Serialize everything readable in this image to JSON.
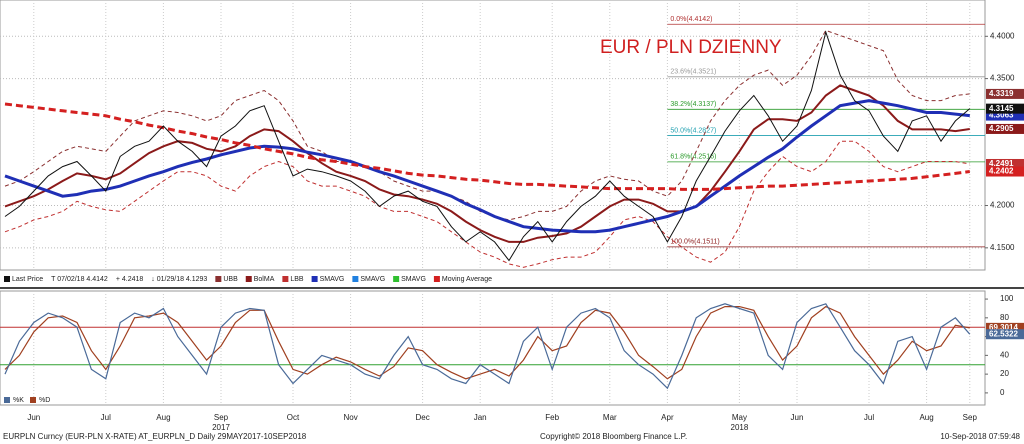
{
  "chart_data": [
    {
      "type": "line",
      "title": "EUR / PLN DZIENNY",
      "categories": [
        null,
        null,
        "Jun",
        null,
        null,
        null,
        null,
        "Jul",
        null,
        null,
        null,
        "Aug",
        null,
        null,
        null,
        "Sep",
        null,
        null,
        null,
        null,
        "Oct",
        null,
        null,
        null,
        "Nov",
        null,
        null,
        null,
        null,
        "Dec",
        null,
        null,
        null,
        "Jan",
        null,
        null,
        null,
        null,
        "Feb",
        null,
        null,
        null,
        "Mar",
        null,
        null,
        null,
        "Apr",
        null,
        null,
        null,
        null,
        "May",
        null,
        null,
        null,
        "Jun",
        null,
        null,
        null,
        null,
        "Jul",
        null,
        null,
        null,
        "Aug",
        null,
        null,
        "Sep"
      ],
      "x_year_labels": [
        "2017",
        "2018"
      ],
      "ylim": [
        4.1238,
        4.4429
      ],
      "yticks": [
        {
          "value": 4.15,
          "label": "4.1500"
        },
        {
          "value": 4.2,
          "label": "4.2000"
        },
        {
          "value": 4.35,
          "label": "4.3500"
        },
        {
          "value": 4.4,
          "label": "4.4000"
        }
      ],
      "grid": true,
      "series": [
        {
          "color": "#8b3030",
          "dash": true,
          "width": 1,
          "values": [
            4.223,
            4.229,
            4.24,
            4.252,
            4.264,
            4.27,
            4.267,
            4.264,
            4.282,
            4.3,
            4.306,
            4.312,
            4.31,
            4.306,
            4.3,
            4.306,
            4.324,
            4.33,
            4.336,
            4.324,
            4.3,
            4.27,
            4.264,
            4.252,
            4.252,
            4.246,
            4.24,
            4.229,
            4.223,
            4.217,
            4.217,
            4.211,
            4.205,
            4.193,
            4.187,
            4.183,
            4.187,
            4.193,
            4.193,
            4.199,
            4.217,
            4.229,
            4.235,
            4.231,
            4.229,
            4.217,
            4.211,
            4.229,
            4.264,
            4.3,
            4.324,
            4.342,
            4.354,
            4.36,
            4.342,
            4.354,
            4.377,
            4.407,
            4.401,
            4.395,
            4.389,
            4.383,
            4.348,
            4.33,
            4.324,
            4.324,
            4.33,
            4.3319
          ]
        },
        {
          "color": "#8b1a1a",
          "dash": false,
          "width": 2,
          "values": [
            4.199,
            4.205,
            4.211,
            4.219,
            4.229,
            4.238,
            4.235,
            4.231,
            4.238,
            4.25,
            4.262,
            4.27,
            4.276,
            4.274,
            4.267,
            4.264,
            4.27,
            4.282,
            4.29,
            4.288,
            4.276,
            4.262,
            4.25,
            4.24,
            4.235,
            4.229,
            4.219,
            4.213,
            4.211,
            4.207,
            4.202,
            4.193,
            4.181,
            4.171,
            4.163,
            4.157,
            4.157,
            4.162,
            4.164,
            4.167,
            4.175,
            4.187,
            4.199,
            4.207,
            4.207,
            4.202,
            4.193,
            4.193,
            4.199,
            4.217,
            4.24,
            4.264,
            4.29,
            4.302,
            4.302,
            4.3,
            4.31,
            4.33,
            4.342,
            4.336,
            4.33,
            4.318,
            4.3,
            4.29,
            4.29,
            4.29,
            4.288,
            4.2905
          ]
        },
        {
          "color": "#c03030",
          "dash": true,
          "width": 1,
          "values": [
            4.169,
            4.175,
            4.183,
            4.187,
            4.193,
            4.205,
            4.199,
            4.195,
            4.193,
            4.205,
            4.217,
            4.229,
            4.24,
            4.24,
            4.235,
            4.223,
            4.217,
            4.235,
            4.246,
            4.252,
            4.246,
            4.229,
            4.223,
            4.223,
            4.217,
            4.211,
            4.199,
            4.193,
            4.193,
            4.187,
            4.181,
            4.169,
            4.157,
            4.145,
            4.139,
            4.131,
            4.127,
            4.131,
            4.136,
            4.139,
            4.139,
            4.145,
            4.163,
            4.183,
            4.187,
            4.181,
            4.163,
            4.151,
            4.139,
            4.133,
            4.145,
            4.175,
            4.217,
            4.24,
            4.258,
            4.246,
            4.24,
            4.252,
            4.276,
            4.276,
            4.264,
            4.246,
            4.24,
            4.246,
            4.252,
            4.252,
            4.252,
            4.2491
          ]
        },
        {
          "color": "#1f2fb5",
          "dash": false,
          "width": 3,
          "values": [
            4.235,
            4.229,
            4.223,
            4.217,
            4.211,
            4.213,
            4.217,
            4.219,
            4.223,
            4.229,
            4.235,
            4.24,
            4.246,
            4.251,
            4.255,
            4.26,
            4.264,
            4.268,
            4.27,
            4.269,
            4.267,
            4.263,
            4.26,
            4.256,
            4.252,
            4.246,
            4.24,
            4.235,
            4.229,
            4.223,
            4.217,
            4.211,
            4.202,
            4.195,
            4.187,
            4.181,
            4.175,
            4.173,
            4.171,
            4.17,
            4.169,
            4.169,
            4.171,
            4.175,
            4.179,
            4.183,
            4.187,
            4.193,
            4.199,
            4.211,
            4.223,
            4.235,
            4.246,
            4.257,
            4.267,
            4.281,
            4.294,
            4.306,
            4.318,
            4.321,
            4.324,
            4.321,
            4.318,
            4.314,
            4.31,
            4.31,
            4.308,
            4.3063
          ]
        },
        {
          "color": "#d42020",
          "dash": true,
          "width": 3,
          "values": [
            4.32,
            4.318,
            4.316,
            4.314,
            4.312,
            4.31,
            4.308,
            4.306,
            4.302,
            4.299,
            4.295,
            4.292,
            4.288,
            4.285,
            4.281,
            4.278,
            4.274,
            4.271,
            4.267,
            4.264,
            4.261,
            4.257,
            4.254,
            4.252,
            4.249,
            4.246,
            4.244,
            4.241,
            4.238,
            4.236,
            4.235,
            4.233,
            4.231,
            4.23,
            4.228,
            4.226,
            4.225,
            4.225,
            4.224,
            4.223,
            4.222,
            4.221,
            4.22,
            4.22,
            4.22,
            4.22,
            4.22,
            4.219,
            4.219,
            4.219,
            4.22,
            4.221,
            4.222,
            4.223,
            4.223,
            4.224,
            4.225,
            4.226,
            4.227,
            4.228,
            4.229,
            4.23,
            4.231,
            4.232,
            4.234,
            4.236,
            4.238,
            4.2402
          ]
        },
        {
          "color": "#111111",
          "dash": false,
          "width": 1,
          "values": [
            4.187,
            4.199,
            4.217,
            4.235,
            4.246,
            4.252,
            4.235,
            4.217,
            4.258,
            4.27,
            4.276,
            4.294,
            4.276,
            4.264,
            4.246,
            4.282,
            4.294,
            4.312,
            4.318,
            4.276,
            4.235,
            4.243,
            4.24,
            4.235,
            4.229,
            4.217,
            4.199,
            4.211,
            4.217,
            4.205,
            4.199,
            4.175,
            4.157,
            4.169,
            4.157,
            4.135,
            4.163,
            4.181,
            4.157,
            4.181,
            4.199,
            4.211,
            4.229,
            4.211,
            4.199,
            4.187,
            4.157,
            4.187,
            4.229,
            4.258,
            4.288,
            4.312,
            4.33,
            4.306,
            4.276,
            4.294,
            4.336,
            4.405,
            4.354,
            4.324,
            4.312,
            4.282,
            4.264,
            4.3,
            4.306,
            4.276,
            4.3,
            4.3145
          ]
        }
      ],
      "fib_levels": [
        {
          "value": 4.4142,
          "label": "0.0%(4.4142)",
          "color": "#b03030"
        },
        {
          "value": 4.3521,
          "label": "23.6%(4.3521)",
          "color": "#999999"
        },
        {
          "value": 4.3137,
          "label": "38.2%(4.3137)",
          "color": "#2a9a2a"
        },
        {
          "value": 4.2827,
          "label": "50.0%(4.2827)",
          "color": "#20a0b0"
        },
        {
          "value": 4.2516,
          "label": "61.8%(4.2516)",
          "color": "#2a9a2a"
        },
        {
          "value": 4.1511,
          "label": "100.0%(4.1511)",
          "color": "#8b1a1a"
        }
      ],
      "legend": [
        {
          "label": "Last Price",
          "color": "#111111"
        },
        {
          "label": "T 07/02/18 4.4142"
        },
        {
          "label": "+ 4.2418"
        },
        {
          "label": "↓ 01/29/18 4.1293"
        },
        {
          "label": "UBB",
          "color": "#8b3030"
        },
        {
          "label": "BolMA",
          "color": "#8b1a1a"
        },
        {
          "label": "LBB",
          "color": "#c03030"
        },
        {
          "label": "SMAVG",
          "color": "#1f2fb5"
        },
        {
          "label": "SMAVG",
          "color": "#2080e0"
        },
        {
          "label": "SMAVG",
          "color": "#30c030"
        },
        {
          "label": "Moving Average",
          "color": "#d42020"
        }
      ]
    },
    {
      "type": "line",
      "ylim": [
        -12.9,
        108.6
      ],
      "yticks": [
        0,
        20,
        40,
        60,
        80,
        100
      ],
      "levels": [
        {
          "value": 70,
          "color": "#c03030"
        },
        {
          "value": 30,
          "color": "#30a030"
        }
      ],
      "series": [
        {
          "name": "%D",
          "color": "#a04020",
          "values": [
            25,
            40,
            65,
            80,
            82,
            75,
            45,
            25,
            50,
            80,
            82,
            85,
            75,
            55,
            35,
            50,
            75,
            88,
            88,
            55,
            25,
            20,
            30,
            38,
            33,
            25,
            18,
            28,
            48,
            45,
            30,
            22,
            15,
            20,
            25,
            18,
            35,
            60,
            45,
            50,
            75,
            88,
            85,
            65,
            40,
            28,
            15,
            25,
            60,
            85,
            92,
            92,
            88,
            60,
            35,
            50,
            80,
            92,
            85,
            60,
            40,
            20,
            35,
            55,
            45,
            50,
            72,
            69.3014
          ]
        },
        {
          "name": "%K",
          "color": "#4a6a98",
          "values": [
            20,
            55,
            75,
            85,
            80,
            70,
            25,
            15,
            75,
            85,
            80,
            90,
            60,
            40,
            20,
            70,
            85,
            90,
            88,
            30,
            10,
            25,
            40,
            35,
            30,
            20,
            15,
            40,
            60,
            30,
            25,
            15,
            10,
            30,
            20,
            10,
            55,
            70,
            25,
            70,
            85,
            90,
            80,
            45,
            30,
            20,
            5,
            40,
            80,
            90,
            95,
            90,
            85,
            40,
            25,
            75,
            90,
            95,
            70,
            45,
            30,
            10,
            55,
            60,
            25,
            70,
            80,
            62.5322
          ]
        }
      ]
    }
  ],
  "footer": {
    "left": "EURPLN Curncy (EUR-PLN X-RATE) AT_EURPLN_D  Daily 29MAY2017-10SEP2018",
    "center": "Copyright© 2018 Bloomberg Finance L.P.",
    "right": "10-Sep-2018 07:59:48"
  }
}
